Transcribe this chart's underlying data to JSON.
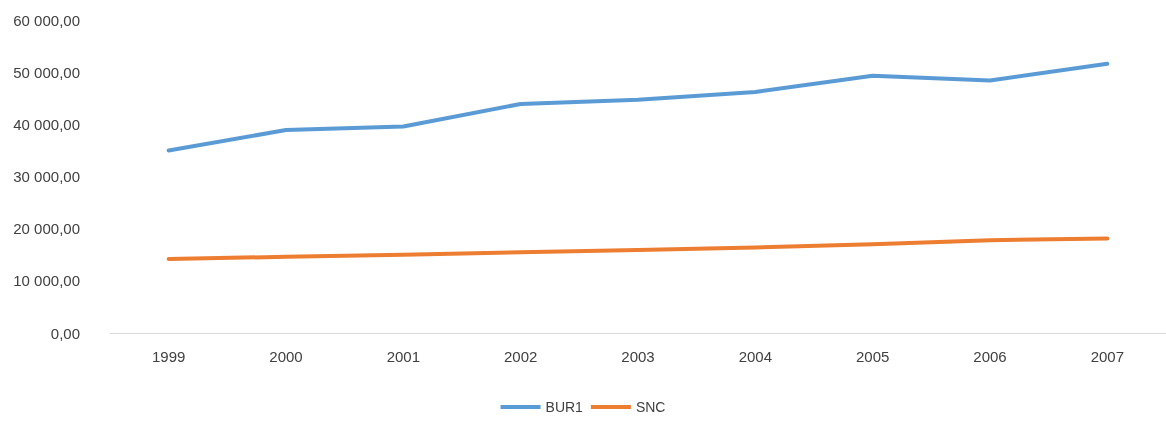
{
  "chart_data": {
    "type": "line",
    "categories": [
      "1999",
      "2000",
      "2001",
      "2002",
      "2003",
      "2004",
      "2005",
      "2006",
      "2007"
    ],
    "series": [
      {
        "name": "BUR1",
        "color": "#5b9bd5",
        "values": [
          35000,
          38900,
          39600,
          43900,
          44700,
          46200,
          49300,
          48400,
          51600
        ]
      },
      {
        "name": "SNC",
        "color": "#ed7d31",
        "values": [
          14200,
          14600,
          15000,
          15500,
          15900,
          16400,
          17000,
          17800,
          18100
        ]
      }
    ],
    "ylim": [
      0,
      60000
    ],
    "yticks": [
      {
        "value": 0,
        "label": "0,00"
      },
      {
        "value": 10000,
        "label": "10 000,00"
      },
      {
        "value": 20000,
        "label": "20 000,00"
      },
      {
        "value": 30000,
        "label": "30 000,00"
      },
      {
        "value": 40000,
        "label": "40 000,00"
      },
      {
        "value": 50000,
        "label": "50 000,00"
      },
      {
        "value": 60000,
        "label": "60 000,00"
      }
    ],
    "grid": false,
    "legend": "bottom",
    "marker": "none",
    "line_style": "solid"
  }
}
